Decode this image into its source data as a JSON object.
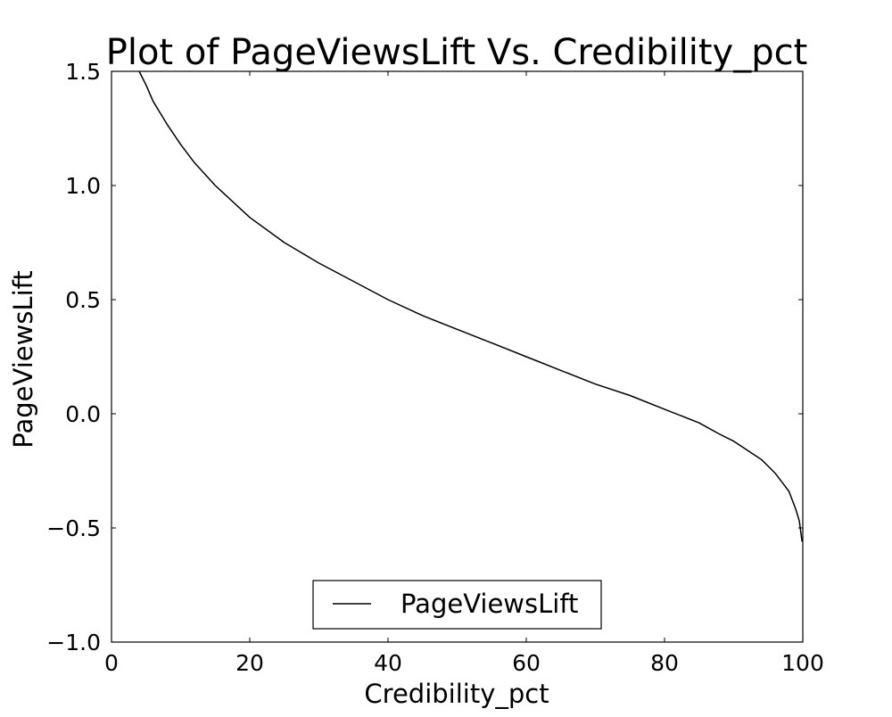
{
  "chart_data": {
    "type": "line",
    "title": "Plot of PageViewsLift Vs. Credibility_pct",
    "xlabel": "Credibility_pct",
    "ylabel": "PageViewsLift",
    "xlim": [
      0,
      100
    ],
    "ylim": [
      -1.0,
      1.5
    ],
    "x_ticks": [
      0,
      20,
      40,
      60,
      80,
      100
    ],
    "x_tick_labels": [
      "0",
      "20",
      "40",
      "60",
      "80",
      "100"
    ],
    "y_ticks": [
      -1.0,
      -0.5,
      0.0,
      0.5,
      1.0,
      1.5
    ],
    "y_tick_labels": [
      "−1.0",
      "−0.5",
      "0.0",
      "0.5",
      "1.0",
      "1.5"
    ],
    "grid": false,
    "legend": {
      "position": "lower center",
      "entries": [
        "PageViewsLift"
      ]
    },
    "series": [
      {
        "name": "PageViewsLift",
        "color": "#000000",
        "x": [
          4,
          5,
          6,
          8,
          10,
          12,
          15,
          20,
          25,
          30,
          35,
          40,
          45,
          50,
          55,
          60,
          65,
          70,
          75,
          80,
          85,
          88,
          90,
          92,
          94,
          95,
          96,
          97,
          98,
          99,
          99.5,
          99.9
        ],
        "y": [
          1.5,
          1.44,
          1.37,
          1.27,
          1.18,
          1.1,
          1.0,
          0.86,
          0.75,
          0.66,
          0.58,
          0.5,
          0.43,
          0.37,
          0.31,
          0.25,
          0.19,
          0.13,
          0.08,
          0.02,
          -0.04,
          -0.09,
          -0.12,
          -0.16,
          -0.2,
          -0.23,
          -0.26,
          -0.3,
          -0.34,
          -0.42,
          -0.47,
          -0.56
        ]
      }
    ]
  }
}
